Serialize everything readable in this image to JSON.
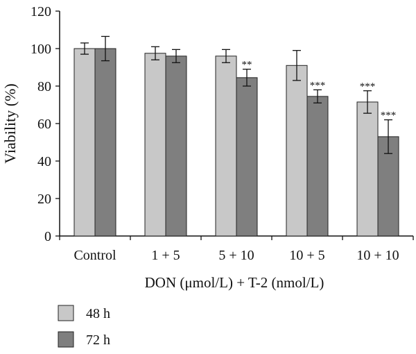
{
  "chart_data": {
    "type": "bar",
    "title": "",
    "xlabel": "DON (μmol/L) + T-2 (nmol/L)",
    "ylabel": "Viability (%)",
    "ylim": [
      0,
      120
    ],
    "yticks": [
      0,
      20,
      40,
      60,
      80,
      100,
      120
    ],
    "grid": false,
    "legend_position": "bottom-left",
    "categories": [
      "Control",
      "1 + 5",
      "5 + 10",
      "10 + 5",
      "10 + 10"
    ],
    "series": [
      {
        "name": "48 h",
        "color": "#c8c8c8",
        "values": [
          100,
          97.5,
          96,
          91,
          71.5
        ],
        "errors": [
          3,
          3.5,
          3.5,
          8,
          6
        ],
        "annotations": [
          "",
          "",
          "",
          "",
          "***"
        ]
      },
      {
        "name": "72 h",
        "color": "#7f7f7f",
        "values": [
          100,
          96,
          84.5,
          74.5,
          53
        ],
        "errors": [
          6.5,
          3.5,
          4.5,
          3.5,
          9
        ],
        "annotations": [
          "",
          "",
          "**",
          "***",
          "***"
        ]
      }
    ]
  }
}
